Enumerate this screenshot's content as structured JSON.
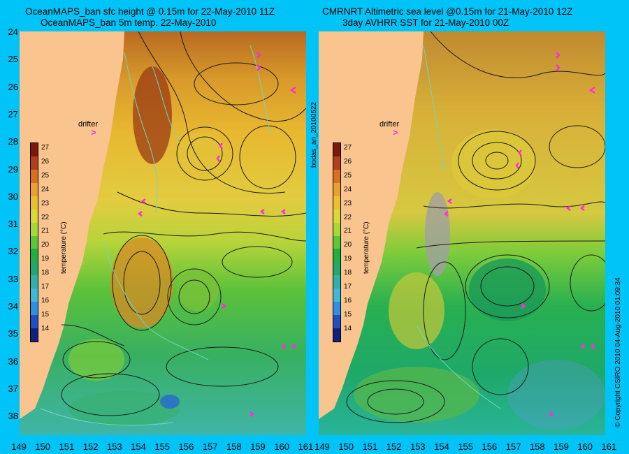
{
  "titles": {
    "left_line1": "OceanMAPS_ban sfc height @ 0.15m for 22-May-2010 11Z",
    "left_line2": "OceanMAPS_ban 5m temp. 22-May-2010",
    "right_line1": "CMRNRT Altimetric sea level  @0.15m  for 21-May-2010 12Z",
    "right_line2": "3day AVHRR SST for 21-May-2010 00Z"
  },
  "axes": {
    "lat_labels": [
      "24",
      "25",
      "26",
      "27",
      "28",
      "29",
      "30",
      "31",
      "32",
      "33",
      "34",
      "35",
      "36",
      "37",
      "38"
    ],
    "lon_labels_left": [
      "149",
      "150",
      "151",
      "152",
      "153",
      "154",
      "155",
      "156",
      "157",
      "158",
      "159",
      "160",
      "161"
    ],
    "lon_labels_right": [
      "149",
      "150",
      "151",
      "152",
      "153",
      "154",
      "155",
      "156",
      "157",
      "158",
      "159",
      "160",
      "161"
    ],
    "lat_range": [
      24,
      38.3
    ],
    "lon_range": [
      149,
      161
    ]
  },
  "colorbar": {
    "ticks": [
      "27",
      "26",
      "25",
      "24",
      "23",
      "22",
      "21",
      "20",
      "19",
      "18",
      "17",
      "16",
      "15",
      "14"
    ],
    "label": "temperature (°C)",
    "colors": [
      "#7a1a0a",
      "#b0401a",
      "#d8701e",
      "#e8a030",
      "#e8c030",
      "#d8d838",
      "#a8d838",
      "#5cc838",
      "#20b040",
      "#20a870",
      "#30b0a8",
      "#40b8d8",
      "#3090e0",
      "#2050c0",
      "#102080"
    ]
  },
  "annotations": {
    "drifter_label": "drifter",
    "drifter_symbol": ">",
    "run_id": "bodas_an_20100522",
    "copyright": "© Copyright CSIRO 2010   04-Aug-2010 01:09:34"
  },
  "colors": {
    "land": "#f9c48e",
    "background": "#00c4f8",
    "drifter": "#ff2dd8",
    "contour": "#1a1a1a",
    "contour_shallow": "#6fd6c0"
  }
}
